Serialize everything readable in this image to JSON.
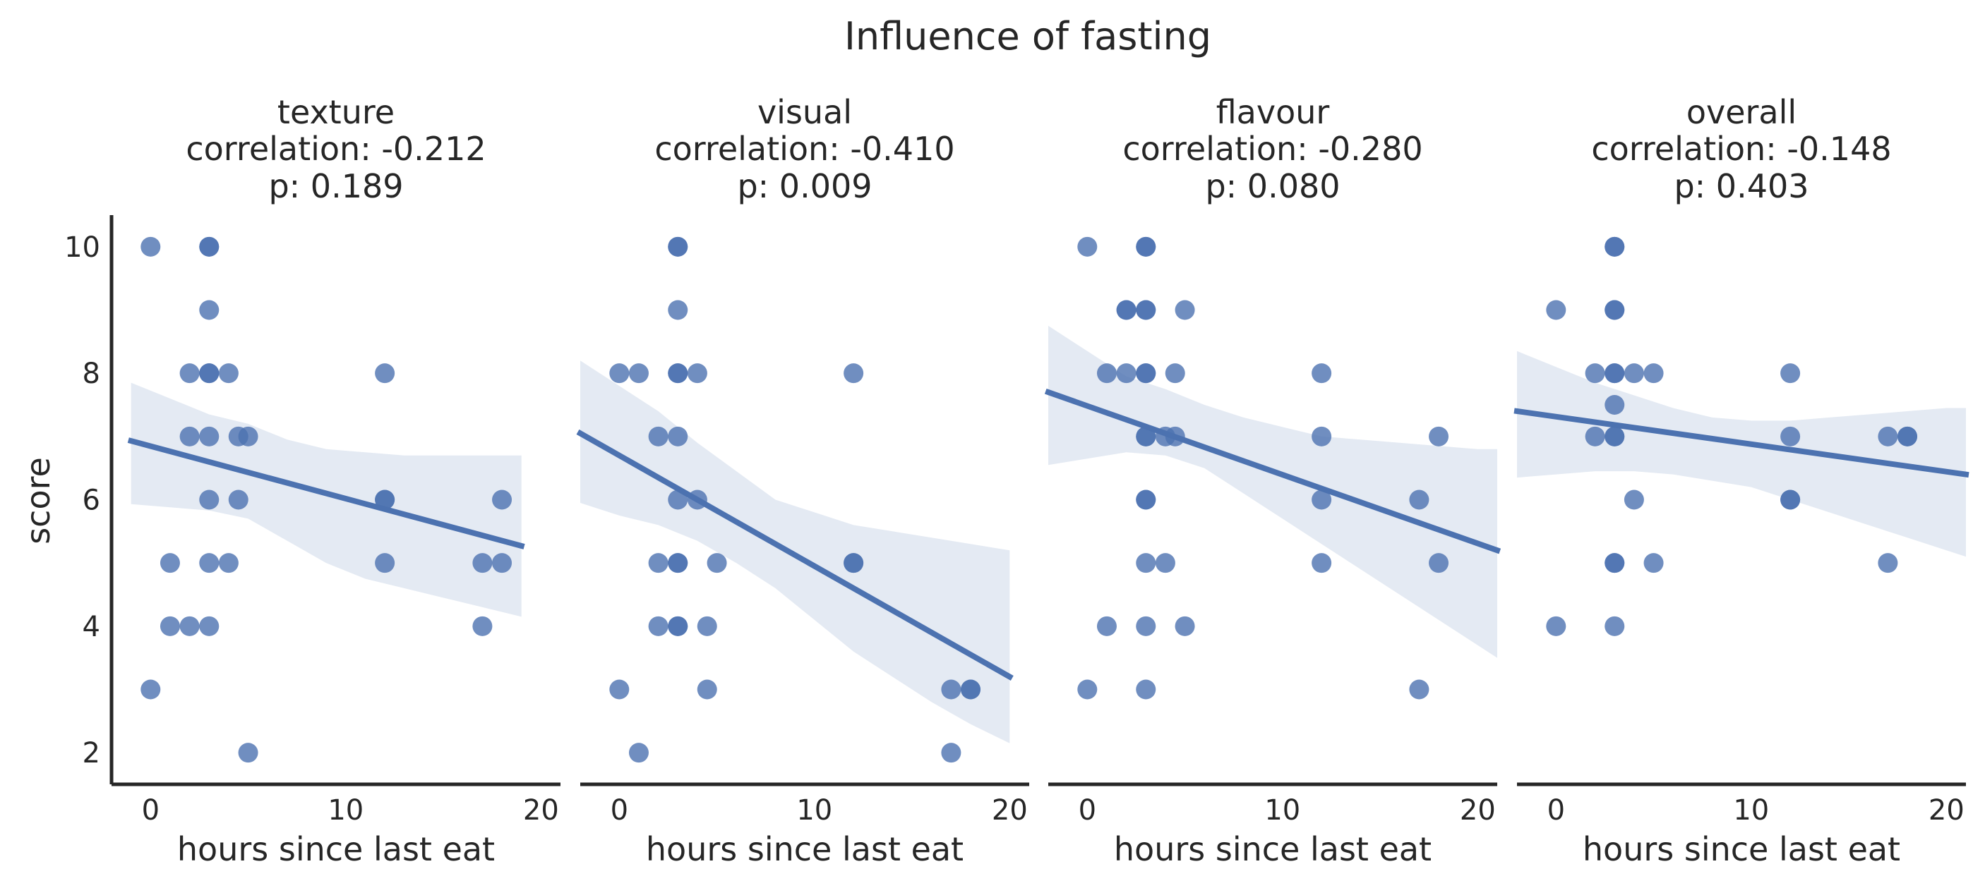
{
  "chart_data": {
    "type": "scatter",
    "title": "Influence of fasting",
    "xlabel": "hours since last eat",
    "ylabel": "score",
    "xlim": [
      -2,
      21
    ],
    "ylim": [
      1.5,
      10.5
    ],
    "xticks": [
      0,
      10,
      20
    ],
    "yticks": [
      2,
      4,
      6,
      8,
      10
    ],
    "grid": false,
    "color": "#4c72b0",
    "panels": [
      {
        "name": "texture",
        "correlation_text": "correlation: -0.212",
        "p_text": "p: 0.189",
        "points": [
          [
            0,
            10
          ],
          [
            3,
            10
          ],
          [
            3,
            10
          ],
          [
            3,
            9
          ],
          [
            2,
            8
          ],
          [
            3,
            8
          ],
          [
            3,
            8
          ],
          [
            4,
            8
          ],
          [
            12,
            8
          ],
          [
            2,
            7
          ],
          [
            3,
            7
          ],
          [
            4.5,
            7
          ],
          [
            5,
            7
          ],
          [
            3,
            6
          ],
          [
            4.5,
            6
          ],
          [
            12,
            6
          ],
          [
            12,
            6
          ],
          [
            18,
            6
          ],
          [
            1,
            5
          ],
          [
            3,
            5
          ],
          [
            4,
            5
          ],
          [
            12,
            5
          ],
          [
            17,
            5
          ],
          [
            18,
            5
          ],
          [
            1,
            4
          ],
          [
            2,
            4
          ],
          [
            3,
            4
          ],
          [
            17,
            4
          ],
          [
            0,
            3
          ],
          [
            5,
            2
          ]
        ],
        "fit": {
          "x": [
            -1,
            19
          ],
          "y": [
            6.93,
            5.27
          ]
        },
        "ci": {
          "x": [
            -1,
            1,
            3,
            5,
            7,
            9,
            11,
            13,
            15,
            17,
            19
          ],
          "lower": [
            5.93,
            5.88,
            5.83,
            5.7,
            5.35,
            5.0,
            4.75,
            4.6,
            4.45,
            4.3,
            4.15
          ],
          "upper": [
            7.85,
            7.6,
            7.35,
            7.2,
            6.95,
            6.8,
            6.75,
            6.7,
            6.7,
            6.7,
            6.7
          ]
        }
      },
      {
        "name": "visual",
        "correlation_text": "correlation: -0.410",
        "p_text": "p: 0.009",
        "points": [
          [
            3,
            10
          ],
          [
            3,
            10
          ],
          [
            3,
            9
          ],
          [
            0,
            8
          ],
          [
            1,
            8
          ],
          [
            3,
            8
          ],
          [
            3,
            8
          ],
          [
            4,
            8
          ],
          [
            12,
            8
          ],
          [
            2,
            7
          ],
          [
            3,
            7
          ],
          [
            3,
            6
          ],
          [
            4,
            6
          ],
          [
            2,
            5
          ],
          [
            3,
            5
          ],
          [
            3,
            5
          ],
          [
            5,
            5
          ],
          [
            12,
            5
          ],
          [
            12,
            5
          ],
          [
            2,
            4
          ],
          [
            3,
            4
          ],
          [
            3,
            4
          ],
          [
            4.5,
            4
          ],
          [
            0,
            3
          ],
          [
            4.5,
            3
          ],
          [
            17,
            3
          ],
          [
            18,
            3
          ],
          [
            18,
            3
          ],
          [
            1,
            2
          ],
          [
            17,
            2
          ]
        ],
        "fit": {
          "x": [
            -2,
            20
          ],
          "y": [
            7.05,
            3.2
          ]
        },
        "ci": {
          "x": [
            -2,
            0,
            2,
            4,
            6,
            8,
            10,
            12,
            14,
            16,
            18,
            20
          ],
          "lower": [
            5.95,
            5.75,
            5.6,
            5.35,
            5.0,
            4.6,
            4.1,
            3.6,
            3.2,
            2.8,
            2.45,
            2.15
          ],
          "upper": [
            8.2,
            7.8,
            7.4,
            6.9,
            6.45,
            6.0,
            5.8,
            5.6,
            5.5,
            5.4,
            5.3,
            5.2
          ]
        }
      },
      {
        "name": "flavour",
        "correlation_text": "correlation: -0.280",
        "p_text": "p: 0.080",
        "points": [
          [
            0,
            10
          ],
          [
            3,
            10
          ],
          [
            3,
            10
          ],
          [
            2,
            9
          ],
          [
            2,
            9
          ],
          [
            3,
            9
          ],
          [
            3,
            9
          ],
          [
            5,
            9
          ],
          [
            1,
            8
          ],
          [
            2,
            8
          ],
          [
            3,
            8
          ],
          [
            3,
            8
          ],
          [
            4.5,
            8
          ],
          [
            12,
            8
          ],
          [
            3,
            7
          ],
          [
            3,
            7
          ],
          [
            4,
            7
          ],
          [
            4.5,
            7
          ],
          [
            12,
            7
          ],
          [
            18,
            7
          ],
          [
            3,
            6
          ],
          [
            3,
            6
          ],
          [
            12,
            6
          ],
          [
            17,
            6
          ],
          [
            3,
            5
          ],
          [
            4,
            5
          ],
          [
            12,
            5
          ],
          [
            18,
            5
          ],
          [
            1,
            4
          ],
          [
            3,
            4
          ],
          [
            5,
            4
          ],
          [
            0,
            3
          ],
          [
            3,
            3
          ],
          [
            17,
            3
          ]
        ],
        "fit": {
          "x": [
            -2,
            21
          ],
          "y": [
            7.7,
            5.2
          ]
        },
        "ci": {
          "x": [
            -2,
            0,
            2,
            4,
            6,
            8,
            10,
            12,
            14,
            16,
            18,
            20,
            21
          ],
          "lower": [
            6.55,
            6.65,
            6.75,
            6.7,
            6.5,
            6.1,
            5.7,
            5.3,
            4.9,
            4.5,
            4.1,
            3.7,
            3.5
          ],
          "upper": [
            8.75,
            8.35,
            7.95,
            7.75,
            7.5,
            7.3,
            7.15,
            7.0,
            6.95,
            6.9,
            6.85,
            6.8,
            6.8
          ]
        }
      },
      {
        "name": "overall",
        "correlation_text": "correlation: -0.148",
        "p_text": "p: 0.403",
        "points": [
          [
            3,
            10
          ],
          [
            3,
            10
          ],
          [
            0,
            9
          ],
          [
            3,
            9
          ],
          [
            3,
            9
          ],
          [
            2,
            8
          ],
          [
            3,
            8
          ],
          [
            3,
            8
          ],
          [
            4,
            8
          ],
          [
            5,
            8
          ],
          [
            12,
            8
          ],
          [
            3,
            7.5
          ],
          [
            2,
            7
          ],
          [
            3,
            7
          ],
          [
            3,
            7
          ],
          [
            12,
            7
          ],
          [
            17,
            7
          ],
          [
            18,
            7
          ],
          [
            18,
            7
          ],
          [
            4,
            6
          ],
          [
            12,
            6
          ],
          [
            12,
            6
          ],
          [
            3,
            5
          ],
          [
            3,
            5
          ],
          [
            5,
            5
          ],
          [
            17,
            5
          ],
          [
            0,
            4
          ],
          [
            3,
            4
          ]
        ],
        "fit": {
          "x": [
            -2,
            21
          ],
          "y": [
            7.4,
            6.4
          ]
        },
        "ci": {
          "x": [
            -2,
            0,
            2,
            4,
            6,
            8,
            10,
            12,
            14,
            16,
            18,
            20,
            21
          ],
          "lower": [
            6.35,
            6.4,
            6.45,
            6.45,
            6.4,
            6.3,
            6.2,
            6.0,
            5.8,
            5.6,
            5.4,
            5.2,
            5.1
          ],
          "upper": [
            8.35,
            8.1,
            7.85,
            7.65,
            7.45,
            7.3,
            7.25,
            7.25,
            7.3,
            7.35,
            7.4,
            7.45,
            7.45
          ]
        }
      }
    ]
  }
}
